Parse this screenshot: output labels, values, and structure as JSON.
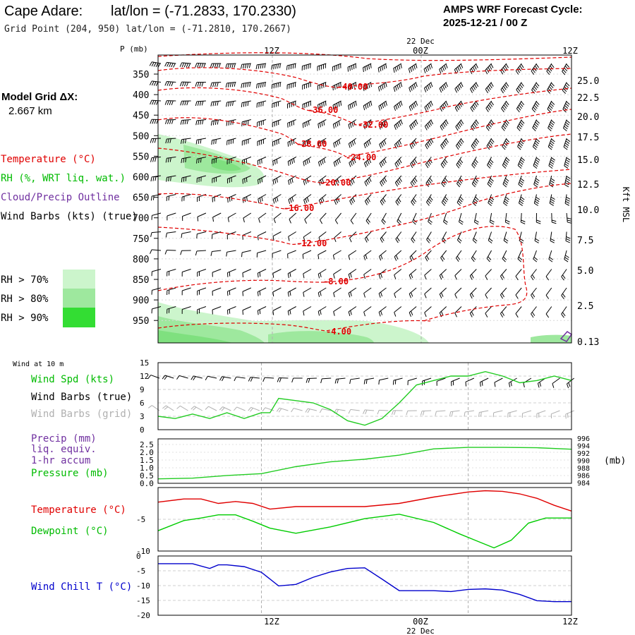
{
  "header": {
    "station": "Cape Adare:",
    "latlon": "lat/lon = (-71.2833, 170.2330)",
    "grid_point": "Grid Point (204, 950) lat/lon = (-71.2810, 170.2667)",
    "forecast_title": "AMPS WRF Forecast Cycle:",
    "cycle": "2025-12-21 / 00  Z"
  },
  "time_axis": {
    "date_label": "22 Dec",
    "ticks": [
      "12Z",
      "00Z",
      "12Z"
    ]
  },
  "model_grid": {
    "title": "Model Grid ΔX:",
    "value": "2.667 km"
  },
  "legend": {
    "temperature": "Temperature (°C)",
    "rh": "RH (%, WRT liq. wat.)",
    "cloud": "Cloud/Precip Outline",
    "wind": "Wind Barbs (kts) (true)",
    "rh_levels": [
      "RH > 70%",
      "RH > 80%",
      "RH > 90%"
    ]
  },
  "colors": {
    "temperature": "#e00000",
    "dewpoint": "#00cc00",
    "wind_speed": "#22cc22",
    "pressure": "#22cc22",
    "wind_chill": "#0000cc",
    "cloud": "#7030a0",
    "grid_barbs": "#b0b0b0",
    "rh70": "#ccf5cc",
    "rh80": "#9ee89e",
    "rh90": "#33dd33"
  },
  "chart_data": [
    {
      "type": "cross-section",
      "panel": "upper-air",
      "ylabel": "P (mb)",
      "y_tick_labels": [
        "350",
        "400",
        "450",
        "500",
        "550",
        "600",
        "650",
        "700",
        "750",
        "800",
        "850",
        "900",
        "950"
      ],
      "right_axis_label": "Kft MSL",
      "right_tick_labels": [
        "25.0",
        "22.5",
        "20.0",
        "17.5",
        "15.0",
        "12.5",
        "10.0",
        "7.5",
        "5.0",
        "2.5",
        "0.13"
      ],
      "isotherm_labels": [
        "-40.00",
        "-36.00",
        "-32.00",
        "-28.00",
        "-24.00",
        "-20.00",
        "-16.00",
        "-12.00",
        "-8.00",
        "-4.00"
      ],
      "grid": true
    },
    {
      "type": "line",
      "panel": "wind-10m",
      "title": "Wind at 10 m",
      "labels": [
        "Wind Spd (kts)",
        "Wind Barbs (true)",
        "Wind Barbs (grid)"
      ],
      "y_tick_labels": [
        "0",
        "3",
        "6",
        "9",
        "12",
        "15"
      ],
      "ylim": [
        0,
        15
      ],
      "series": [
        {
          "name": "Wind Spd (kts)",
          "x": [
            0,
            2,
            4,
            6,
            8,
            10,
            12,
            13,
            14,
            16,
            18,
            20,
            22,
            24,
            26,
            28,
            30,
            32,
            34,
            36,
            38,
            40,
            42,
            44,
            46,
            48
          ],
          "values": [
            3,
            2.5,
            3.5,
            2.5,
            3.8,
            2.5,
            3.8,
            3.8,
            7,
            6.5,
            6,
            4.5,
            2,
            1,
            2.5,
            6,
            10,
            11,
            12,
            12,
            13,
            12,
            10.5,
            11,
            12,
            11
          ]
        }
      ]
    },
    {
      "type": "line",
      "panel": "precip-pressure",
      "labels": [
        "Precip (mm)",
        "liq. equiv.",
        "1-hr accum",
        "Pressure (mb)"
      ],
      "y_tick_labels": [
        "0.0",
        "0.5",
        "1.0",
        "1.5",
        "2.0",
        "2.5"
      ],
      "ylim": [
        0,
        2.5
      ],
      "right_tick_labels": [
        "984",
        "986",
        "988",
        "990",
        "992",
        "994",
        "996"
      ],
      "right_ylim": [
        984,
        996
      ],
      "right_unit": "(mb)",
      "series": [
        {
          "name": "Pressure (mb)",
          "x": [
            0,
            4,
            8,
            12,
            16,
            20,
            24,
            28,
            32,
            36,
            40,
            44,
            48
          ],
          "values": [
            985.2,
            985.4,
            986.1,
            986.6,
            988.5,
            989.8,
            990.5,
            991.6,
            993.3,
            993.7,
            993.7,
            993.6,
            993.2
          ]
        }
      ]
    },
    {
      "type": "line",
      "panel": "temperature",
      "labels": [
        "Temperature (°C)",
        "Dewpoint (°C)"
      ],
      "y_tick_labels": [
        "-5",
        "-10"
      ],
      "ylim": [
        -10,
        0
      ],
      "series": [
        {
          "name": "Temperature (°C)",
          "x": [
            0,
            3,
            5,
            7,
            9,
            11,
            13,
            16,
            20,
            24,
            28,
            32,
            36,
            38,
            40,
            42,
            44,
            46,
            48
          ],
          "values": [
            -2.3,
            -1.8,
            -1.8,
            -2.5,
            -2.2,
            -2.5,
            -3.4,
            -3,
            -3,
            -3,
            -2.5,
            -1.5,
            -0.7,
            -0.5,
            -0.6,
            -1.0,
            -1.7,
            -2.8,
            -3.7
          ]
        },
        {
          "name": "Dewpoint (°C)",
          "x": [
            0,
            3,
            5,
            7,
            9,
            11,
            13,
            16,
            20,
            24,
            28,
            32,
            35,
            37,
            39,
            41,
            43,
            45,
            48
          ],
          "values": [
            -6.8,
            -5.2,
            -4.8,
            -4.3,
            -4.3,
            -5.3,
            -6.4,
            -7.2,
            -6.2,
            -4.9,
            -4.2,
            -5.5,
            -7.3,
            -8.4,
            -9.5,
            -8.3,
            -5.6,
            -4.8,
            -4.8
          ]
        }
      ]
    },
    {
      "type": "line",
      "panel": "wind-chill",
      "labels": [
        "Wind Chill T (°C)"
      ],
      "y_tick_labels": [
        "0",
        "-5",
        "-10",
        "-15",
        "-20"
      ],
      "ylim": [
        -20,
        0
      ],
      "series": [
        {
          "name": "Wind Chill T (°C)",
          "x": [
            0,
            2,
            4,
            6,
            7,
            8,
            10,
            12,
            14,
            16,
            18,
            20,
            22,
            24,
            26,
            28,
            30,
            32,
            34,
            36,
            38,
            40,
            42,
            44,
            46,
            48
          ],
          "values": [
            -2.6,
            -2.6,
            -2.6,
            -4.2,
            -3,
            -3,
            -3.6,
            -5.5,
            -10.1,
            -9.6,
            -7.2,
            -5.4,
            -4.2,
            -4,
            -7.8,
            -11.7,
            -11.7,
            -11.7,
            -12,
            -11.3,
            -11.1,
            -11.5,
            -13,
            -15.1,
            -15.4,
            -15.4
          ]
        }
      ]
    }
  ]
}
